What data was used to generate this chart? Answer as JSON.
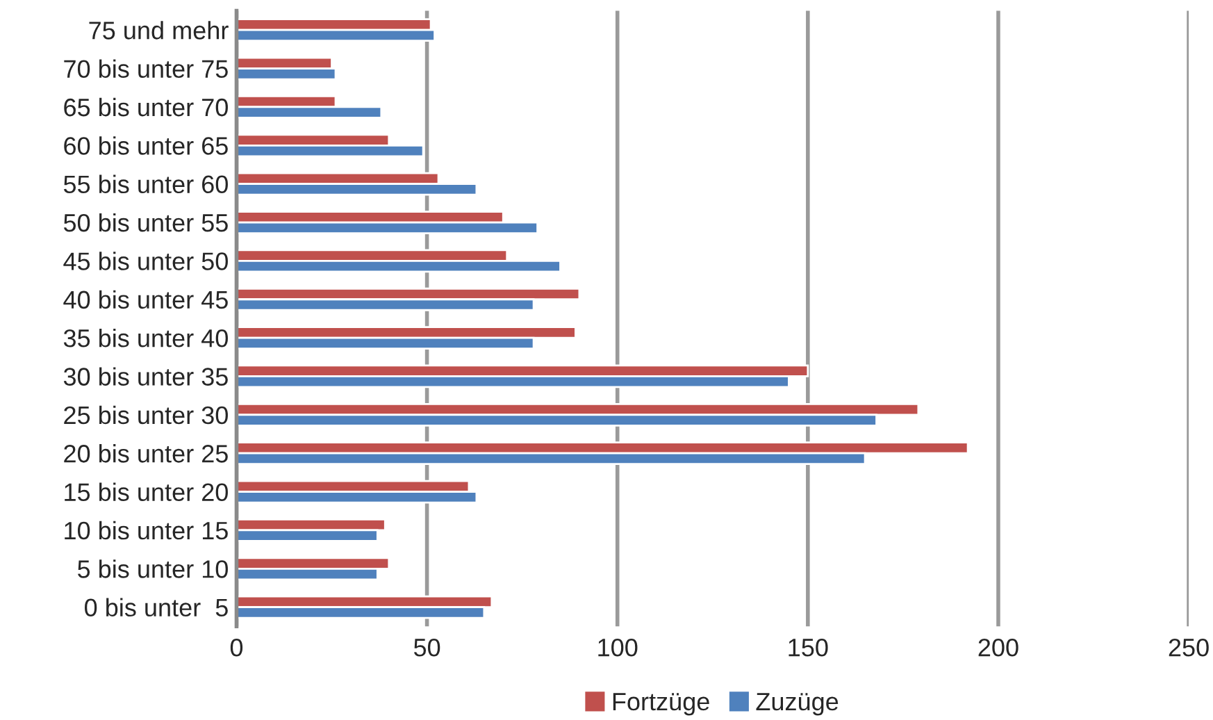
{
  "chart_data": {
    "type": "bar",
    "orientation": "horizontal",
    "categories": [
      "75 und mehr",
      "70 bis unter 75",
      "65 bis unter 70",
      "60 bis unter 65",
      "55 bis unter 60",
      "50 bis unter 55",
      "45 bis unter 50",
      "40 bis unter 45",
      "35 bis unter 40",
      "30 bis unter 35",
      "25 bis unter 30",
      "20 bis unter 25",
      "15 bis unter 20",
      "10 bis unter 15",
      "5 bis unter 10",
      "0 bis unter  5"
    ],
    "series": [
      {
        "name": "Fortzüge",
        "color": "#c0504d",
        "values": [
          51,
          25,
          26,
          40,
          53,
          70,
          71,
          90,
          89,
          150,
          179,
          192,
          61,
          39,
          40,
          67
        ]
      },
      {
        "name": "Zuzüge",
        "color": "#4f81bd",
        "values": [
          52,
          26,
          38,
          49,
          63,
          79,
          85,
          78,
          78,
          145,
          168,
          165,
          63,
          37,
          37,
          65
        ]
      }
    ],
    "xlim": [
      0,
      250
    ],
    "xticks": [
      0,
      50,
      100,
      150,
      200,
      250
    ],
    "grid": "x",
    "legend": "bottom"
  }
}
